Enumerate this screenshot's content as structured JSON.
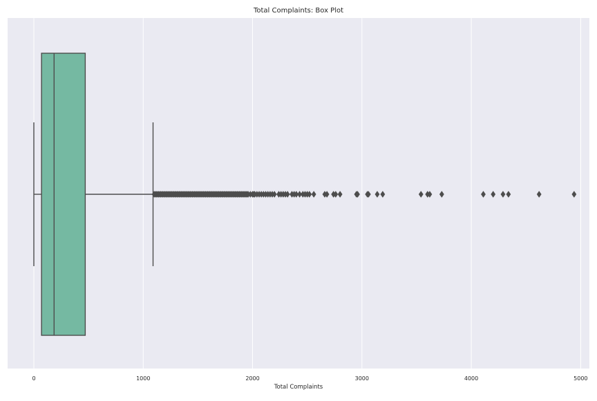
{
  "chart_data": {
    "type": "box",
    "title": "Total Complaints: Box Plot",
    "xlabel": "Total Complaints",
    "ylabel": "",
    "orientation": "horizontal",
    "xlim": [
      -240,
      5080
    ],
    "x_ticks": [
      0,
      1000,
      2000,
      3000,
      4000,
      5000
    ],
    "x_tick_labels": [
      "0",
      "1000",
      "2000",
      "3000",
      "4000",
      "5000"
    ],
    "grid": true,
    "box": {
      "whisker_low": 0,
      "q1": 70,
      "median": 185,
      "q3": 470,
      "whisker_high": 1090
    },
    "outliers": [
      1100,
      1110,
      1120,
      1130,
      1140,
      1150,
      1160,
      1170,
      1180,
      1190,
      1200,
      1210,
      1220,
      1230,
      1240,
      1250,
      1260,
      1270,
      1280,
      1290,
      1300,
      1310,
      1320,
      1330,
      1340,
      1350,
      1360,
      1370,
      1380,
      1390,
      1400,
      1410,
      1420,
      1430,
      1440,
      1450,
      1460,
      1470,
      1480,
      1490,
      1500,
      1510,
      1520,
      1530,
      1540,
      1550,
      1560,
      1570,
      1580,
      1590,
      1600,
      1610,
      1620,
      1630,
      1640,
      1650,
      1660,
      1670,
      1680,
      1690,
      1700,
      1710,
      1720,
      1730,
      1740,
      1750,
      1760,
      1770,
      1780,
      1790,
      1800,
      1810,
      1820,
      1830,
      1840,
      1850,
      1860,
      1870,
      1880,
      1890,
      1900,
      1910,
      1920,
      1930,
      1940,
      1950,
      1960,
      1980,
      2000,
      2010,
      2020,
      2040,
      2060,
      2080,
      2100,
      2120,
      2140,
      2160,
      2180,
      2200,
      2240,
      2260,
      2280,
      2300,
      2320,
      2360,
      2380,
      2400,
      2430,
      2460,
      2480,
      2500,
      2520,
      2560,
      2660,
      2680,
      2740,
      2760,
      2800,
      2950,
      2960,
      3050,
      3060,
      3140,
      3190,
      3540,
      3600,
      3620,
      3730,
      4110,
      4200,
      4290,
      4340,
      4620,
      4940
    ],
    "colors": {
      "background": "#EAEAF2",
      "grid": "#FFFFFF",
      "box_fill": "#75B9A2",
      "line": "#4D4D4D",
      "text": "#262626"
    }
  }
}
